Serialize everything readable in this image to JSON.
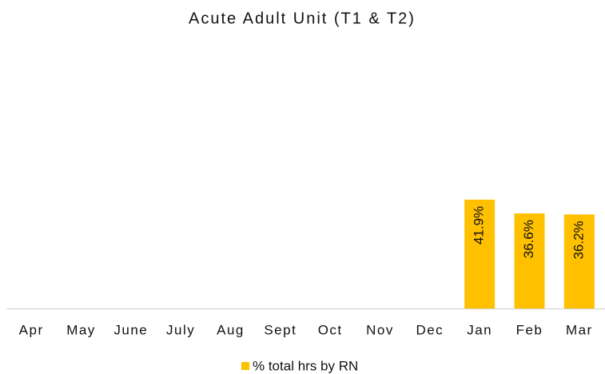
{
  "chart_data": {
    "type": "bar",
    "title": "Acute Adult Unit (T1 & T2)",
    "categories": [
      "Apr",
      "May",
      "June",
      "July",
      "Aug",
      "Sept",
      "Oct",
      "Nov",
      "Dec",
      "Jan",
      "Feb",
      "Mar"
    ],
    "series": [
      {
        "name": "% total hrs by RN",
        "color": "#ffc000",
        "values": [
          null,
          null,
          null,
          null,
          null,
          null,
          null,
          null,
          null,
          41.9,
          36.6,
          36.2
        ],
        "value_labels": [
          null,
          null,
          null,
          null,
          null,
          null,
          null,
          null,
          null,
          "41.9%",
          "36.6%",
          "36.2%"
        ]
      }
    ],
    "ylim": [
      0,
      100
    ]
  }
}
